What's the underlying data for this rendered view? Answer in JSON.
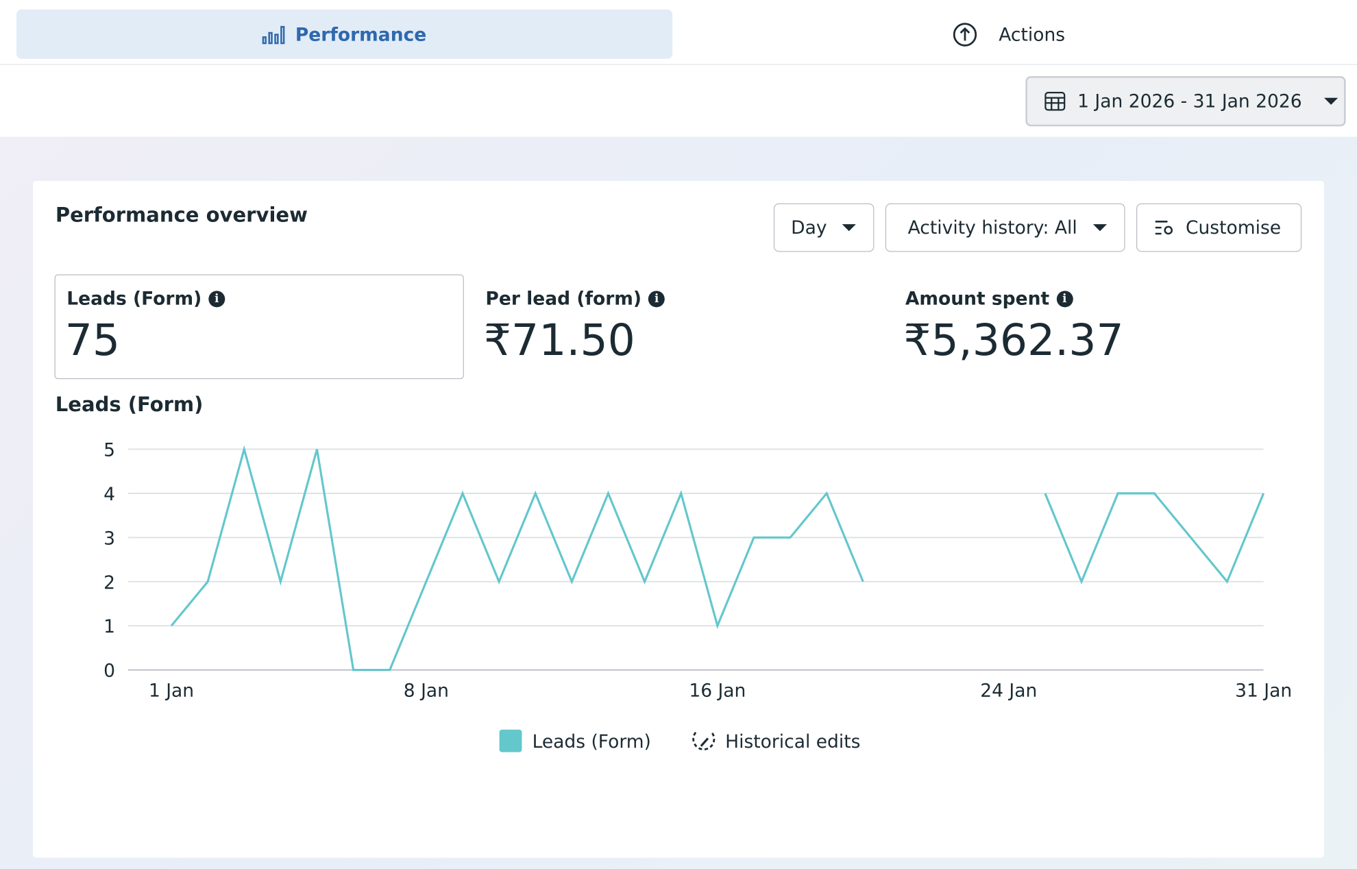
{
  "tabs": [
    {
      "label": "Performance"
    },
    {
      "label": "Actions"
    }
  ],
  "date_range": "1 Jan 2026 - 31 Jan 2026",
  "card": {
    "title": "Performance overview",
    "buttons": [
      "Day",
      "Activity history: All",
      "Customise"
    ],
    "metrics": [
      {
        "label": "Leads (Form)",
        "value": "75"
      },
      {
        "label": "Per lead (form)",
        "value": "₹71.50"
      },
      {
        "label": "Amount spent",
        "value": "₹5,362.37"
      }
    ]
  },
  "chart_data": {
    "type": "line",
    "title": "Leads (Form)",
    "x": [
      1,
      2,
      3,
      4,
      5,
      6,
      7,
      8,
      9,
      10,
      11,
      12,
      13,
      14,
      15,
      16,
      17,
      18,
      19,
      20,
      21,
      22,
      23,
      24,
      25,
      26,
      27,
      28,
      29,
      30,
      31
    ],
    "series": [
      {
        "name": "Leads (Form)",
        "color": "#63c7cc",
        "values": [
          1,
          2,
          5,
          2,
          5,
          0,
          0,
          2,
          4,
          2,
          4,
          2,
          4,
          2,
          4,
          1,
          3,
          3,
          4,
          2,
          null,
          null,
          null,
          null,
          4,
          2,
          4,
          4,
          3,
          2,
          4
        ]
      }
    ],
    "xlim": [
      1,
      31
    ],
    "xticks": [
      {
        "value": 1,
        "label": "1 Jan"
      },
      {
        "value": 8,
        "label": "8 Jan"
      },
      {
        "value": 16,
        "label": "16 Jan"
      },
      {
        "value": 24,
        "label": "24 Jan"
      },
      {
        "value": 31,
        "label": "31 Jan"
      }
    ],
    "ylim": [
      0,
      5
    ],
    "yticks": [
      0,
      1,
      2,
      3,
      4,
      5
    ],
    "grid": true,
    "legend_extra": "Historical edits"
  }
}
